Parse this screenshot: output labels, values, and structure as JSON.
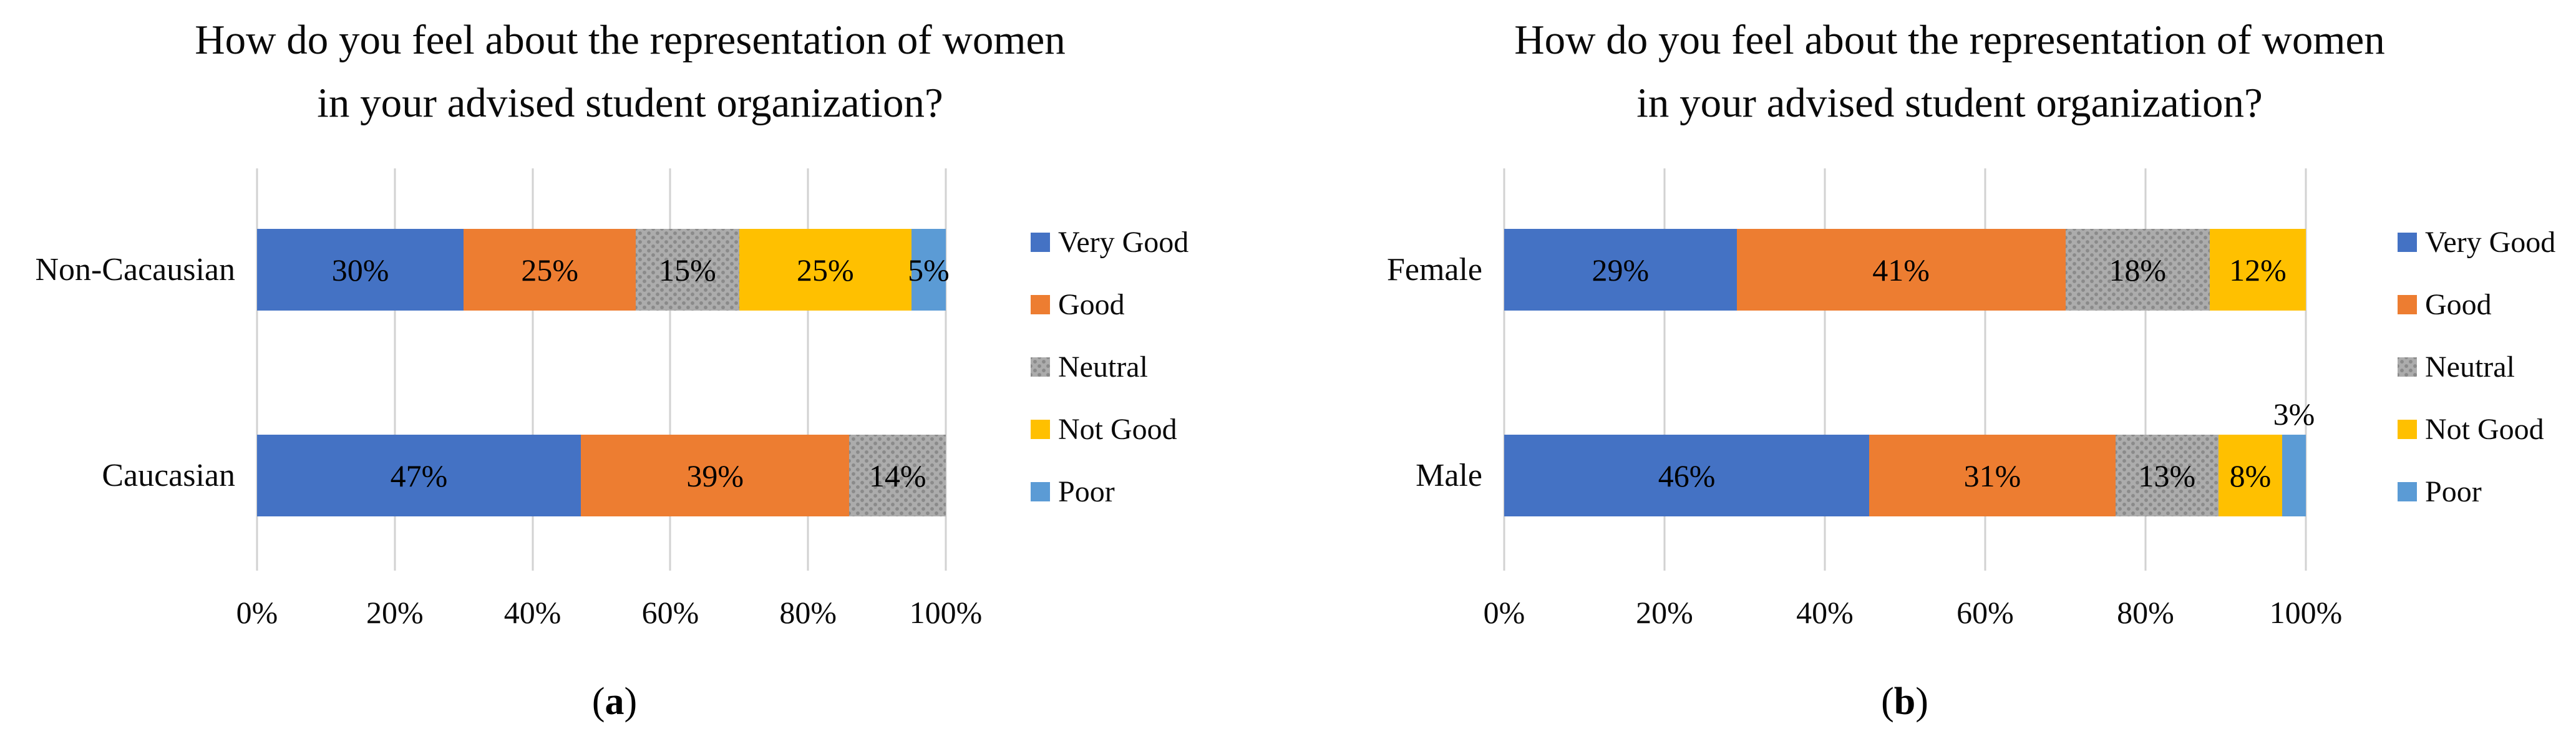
{
  "series_colors": {
    "Very Good": "#4472C4",
    "Good": "#ED7D31",
    "Neutral": "#ACACAC",
    "Not Good": "#FFC000",
    "Poor": "#5B9BD5"
  },
  "gridline_color": "#D2D2D2",
  "chart_data": [
    {
      "id": "a",
      "type": "bar",
      "orientation": "horizontal",
      "stacked": true,
      "grid": true,
      "legend_position": "right",
      "title": [
        "How do you feel about the representation of women",
        "in your advised student organization?"
      ],
      "caption": "(a)",
      "caption_parts": [
        "(",
        "a",
        ")"
      ],
      "categories": [
        "Non-Cacausian",
        "Caucasian"
      ],
      "legend": [
        "Very Good",
        "Good",
        "Neutral",
        "Not Good",
        "Poor"
      ],
      "x_ticks": [
        "0%",
        "20%",
        "40%",
        "60%",
        "80%",
        "100%"
      ],
      "xlim": [
        0,
        100
      ],
      "rows": [
        {
          "label": "Non-Cacausian",
          "segments": [
            {
              "series": "Very Good",
              "value": 30,
              "label": "30%"
            },
            {
              "series": "Good",
              "value": 25,
              "label": "25%"
            },
            {
              "series": "Neutral",
              "value": 15,
              "label": "15%"
            },
            {
              "series": "Not Good",
              "value": 25,
              "label": "25%"
            },
            {
              "series": "Poor",
              "value": 5,
              "label": "5%"
            }
          ]
        },
        {
          "label": "Caucasian",
          "segments": [
            {
              "series": "Very Good",
              "value": 47,
              "label": "47%"
            },
            {
              "series": "Good",
              "value": 39,
              "label": "39%"
            },
            {
              "series": "Neutral",
              "value": 14,
              "label": "14%"
            }
          ]
        }
      ]
    },
    {
      "id": "b",
      "type": "bar",
      "orientation": "horizontal",
      "stacked": true,
      "grid": true,
      "legend_position": "right",
      "title": [
        "How do you feel about the representation of women",
        "in your advised student organization?"
      ],
      "caption": "(b)",
      "caption_parts": [
        "(",
        "b",
        ")"
      ],
      "categories": [
        "Female",
        "Male"
      ],
      "legend": [
        "Very Good",
        "Good",
        "Neutral",
        "Not Good",
        "Poor"
      ],
      "x_ticks": [
        "0%",
        "20%",
        "40%",
        "60%",
        "80%",
        "100%"
      ],
      "xlim": [
        0,
        100
      ],
      "rows": [
        {
          "label": "Female",
          "segments": [
            {
              "series": "Very Good",
              "value": 29,
              "label": "29%"
            },
            {
              "series": "Good",
              "value": 41,
              "label": "41%"
            },
            {
              "series": "Neutral",
              "value": 18,
              "label": "18%"
            },
            {
              "series": "Not Good",
              "value": 12,
              "label": "12%"
            }
          ]
        },
        {
          "label": "Male",
          "segments": [
            {
              "series": "Very Good",
              "value": 46,
              "label": "46%"
            },
            {
              "series": "Good",
              "value": 31,
              "label": "31%"
            },
            {
              "series": "Neutral",
              "value": 13,
              "label": "13%"
            },
            {
              "series": "Not Good",
              "value": 8,
              "label": "8%"
            },
            {
              "series": "Poor",
              "value": 3,
              "label": "3%",
              "label_outside": true
            }
          ]
        }
      ]
    }
  ]
}
